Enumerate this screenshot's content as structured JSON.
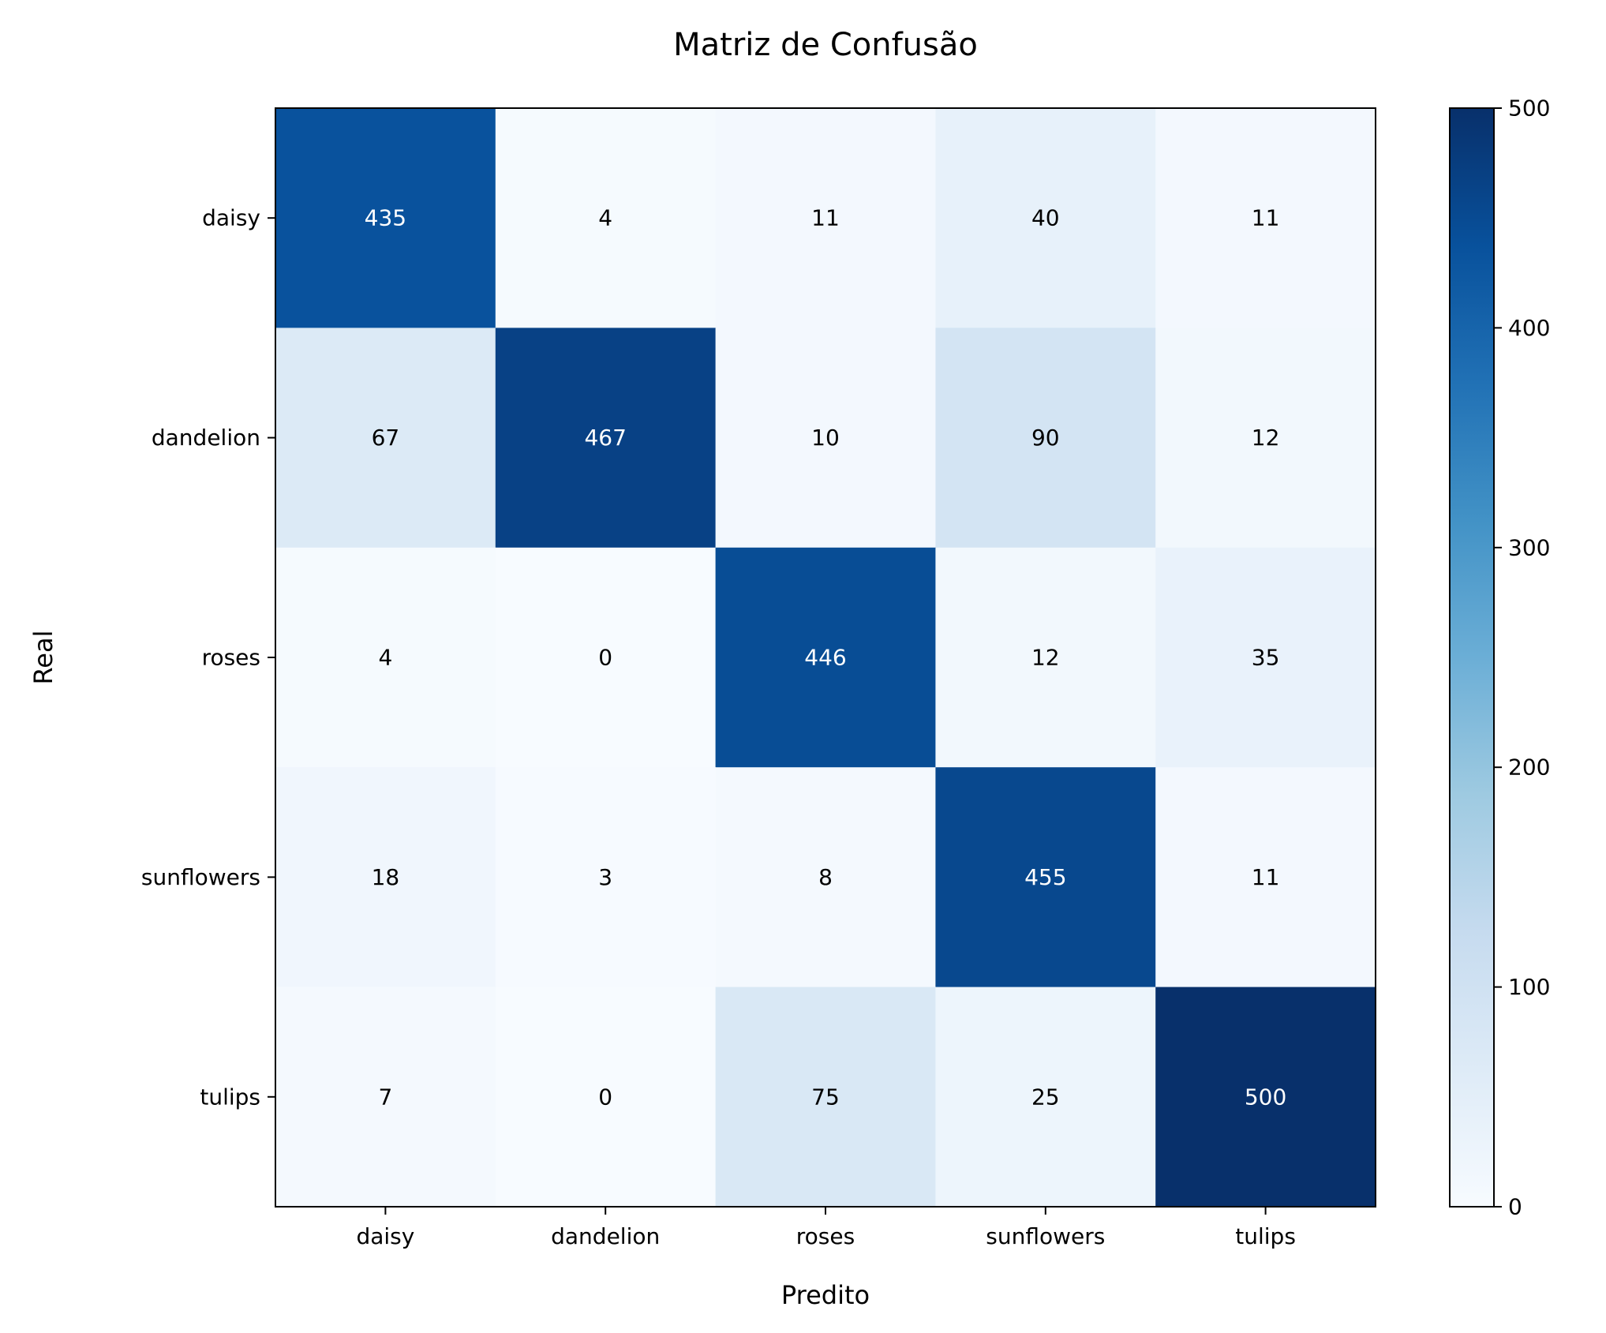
{
  "chart_data": {
    "type": "heatmap",
    "title": "Matriz de Confusão",
    "xlabel": "Predito",
    "ylabel": "Real",
    "x_categories": [
      "daisy",
      "dandelion",
      "roses",
      "sunflowers",
      "tulips"
    ],
    "y_categories": [
      "daisy",
      "dandelion",
      "roses",
      "sunflowers",
      "tulips"
    ],
    "values": [
      [
        435,
        4,
        11,
        40,
        11
      ],
      [
        67,
        467,
        10,
        90,
        12
      ],
      [
        4,
        0,
        446,
        12,
        35
      ],
      [
        18,
        3,
        8,
        455,
        11
      ],
      [
        7,
        0,
        75,
        25,
        500
      ]
    ],
    "colormap": "Blues",
    "colorbar": {
      "range": [
        0,
        500
      ],
      "ticks": [
        "0",
        "100",
        "200",
        "300",
        "400",
        "500"
      ]
    },
    "grid": false
  }
}
